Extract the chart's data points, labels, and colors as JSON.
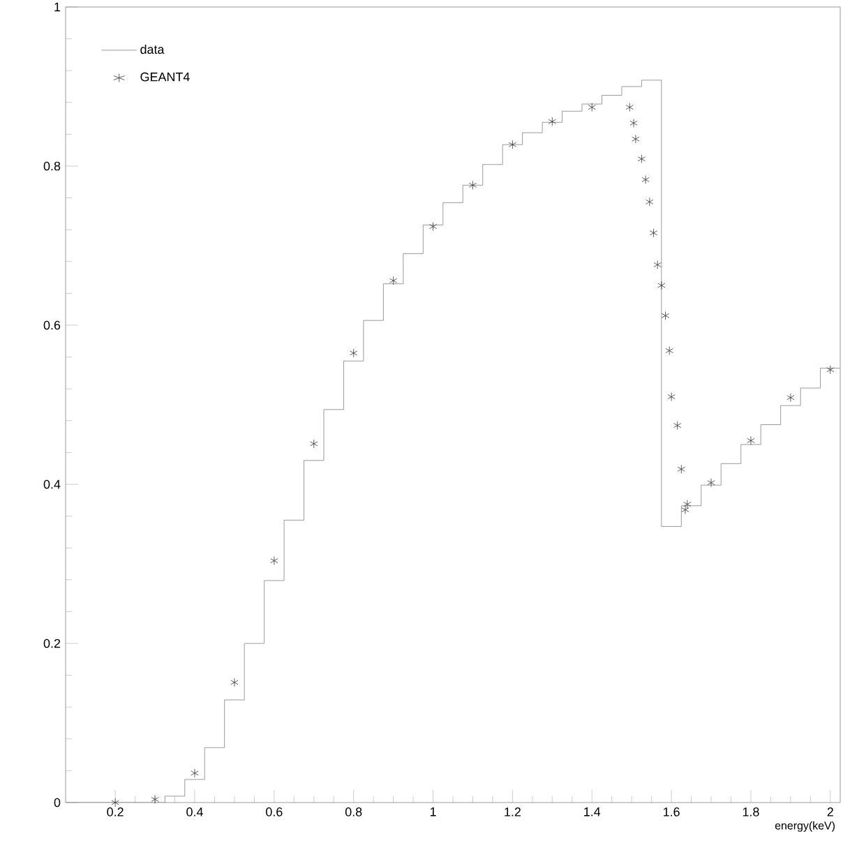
{
  "chart_data": {
    "type": "step",
    "xlabel": "energy(keV)",
    "xlim": [
      0.075,
      2.025
    ],
    "ylim": [
      0,
      1
    ],
    "xticks": [
      0.2,
      0.4,
      0.6,
      0.8,
      1,
      1.2,
      1.4,
      1.6,
      1.8,
      2
    ],
    "yticks": [
      0,
      0.2,
      0.4,
      0.6,
      0.8,
      1
    ],
    "grid": false,
    "legend": "top left",
    "series": [
      {
        "name": "data",
        "color": "#808080",
        "marker": "none",
        "x": [
          0.075,
          0.325,
          0.375,
          0.425,
          0.475,
          0.525,
          0.575,
          0.625,
          0.675,
          0.725,
          0.775,
          0.825,
          0.875,
          0.925,
          0.975,
          1.025,
          1.075,
          1.125,
          1.175,
          1.225,
          1.275,
          1.325,
          1.375,
          1.425,
          1.475,
          1.525,
          1.575,
          1.625,
          1.675,
          1.725,
          1.775,
          1.825,
          1.875,
          1.925,
          1.975,
          2.025
        ],
        "values": [
          0,
          0.008,
          0.029,
          0.069,
          0.129,
          0.2,
          0.279,
          0.355,
          0.43,
          0.494,
          0.555,
          0.606,
          0.652,
          0.69,
          0.726,
          0.754,
          0.776,
          0.802,
          0.827,
          0.842,
          0.855,
          0.869,
          0.878,
          0.889,
          0.9,
          0.908,
          0.347,
          0.373,
          0.399,
          0.426,
          0.45,
          0.475,
          0.499,
          0.521,
          0.546,
          0.546
        ]
      },
      {
        "name": "GEANT4",
        "type": "scatter",
        "color": "#333333",
        "marker": "cross",
        "x": [
          0.2,
          0.3,
          0.4,
          0.5,
          0.6,
          0.7,
          0.8,
          0.9,
          1.0,
          1.1,
          1.2,
          1.3,
          1.4,
          1.495,
          1.505,
          1.51,
          1.525,
          1.535,
          1.545,
          1.555,
          1.565,
          1.575,
          1.585,
          1.595,
          1.6,
          1.615,
          1.625,
          1.635,
          1.64,
          1.7,
          1.8,
          1.9,
          2.0
        ],
        "values": [
          0,
          0.004,
          0.037,
          0.151,
          0.304,
          0.451,
          0.565,
          0.656,
          0.724,
          0.776,
          0.827,
          0.856,
          0.874,
          0.874,
          0.854,
          0.834,
          0.809,
          0.783,
          0.755,
          0.716,
          0.676,
          0.65,
          0.612,
          0.568,
          0.51,
          0.474,
          0.419,
          0.368,
          0.375,
          0.402,
          0.455,
          0.509,
          0.544
        ]
      }
    ]
  }
}
